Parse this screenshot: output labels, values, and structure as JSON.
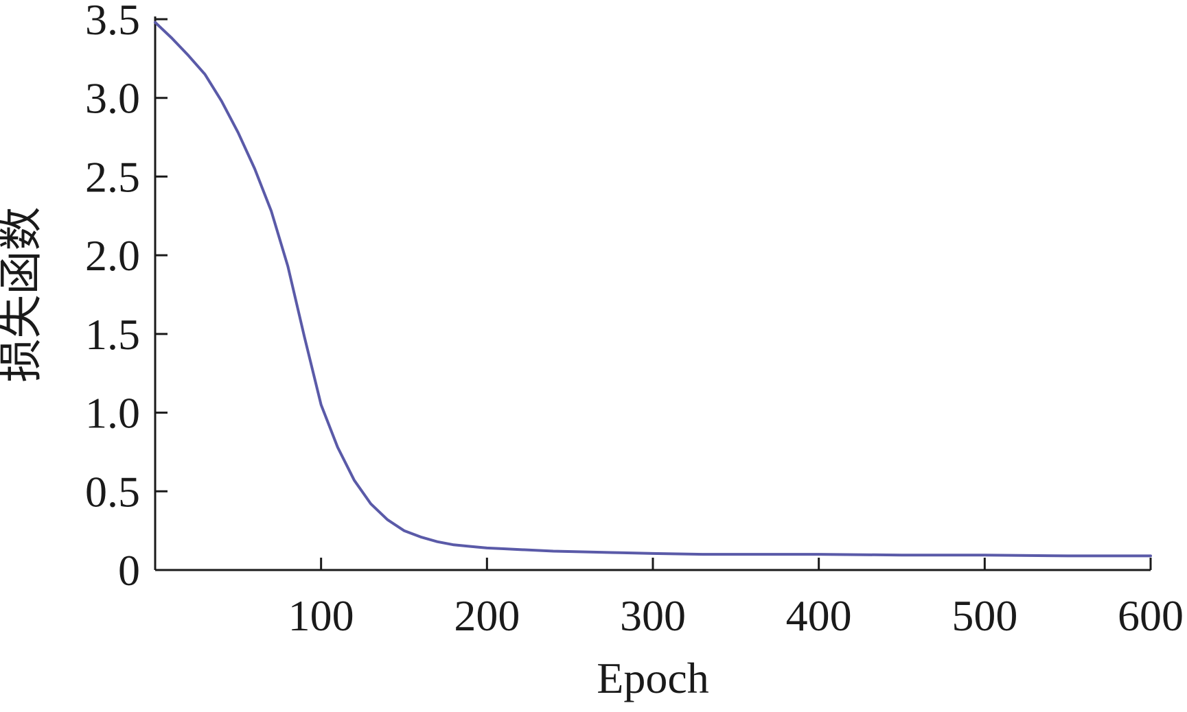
{
  "chart_data": {
    "type": "line",
    "xlabel": "Epoch",
    "ylabel": "损失函数",
    "xlim": [
      0,
      600
    ],
    "ylim": [
      0,
      3.5
    ],
    "x_ticks": [
      100,
      200,
      300,
      400,
      500,
      600
    ],
    "x_tick_labels": [
      "100",
      "200",
      "300",
      "400",
      "500",
      "600"
    ],
    "y_ticks": [
      0,
      0.5,
      1.0,
      1.5,
      2.0,
      2.5,
      3.0,
      3.5
    ],
    "y_tick_labels": [
      "0",
      "0.5",
      "1.0",
      "1.5",
      "2.0",
      "2.5",
      "3.0",
      "3.5"
    ],
    "grid": false,
    "legend": "none",
    "series": [
      {
        "color": "#5a5aa8",
        "x": [
          0,
          10,
          20,
          30,
          40,
          50,
          60,
          70,
          80,
          90,
          100,
          110,
          120,
          130,
          140,
          150,
          160,
          170,
          180,
          190,
          200,
          210,
          220,
          240,
          260,
          280,
          300,
          330,
          360,
          400,
          450,
          500,
          550,
          600
        ],
        "y": [
          3.48,
          3.38,
          3.27,
          3.15,
          2.98,
          2.78,
          2.55,
          2.28,
          1.93,
          1.48,
          1.05,
          0.78,
          0.57,
          0.42,
          0.32,
          0.25,
          0.21,
          0.18,
          0.16,
          0.15,
          0.14,
          0.135,
          0.13,
          0.12,
          0.115,
          0.11,
          0.105,
          0.1,
          0.1,
          0.1,
          0.095,
          0.095,
          0.09,
          0.09
        ]
      }
    ]
  }
}
